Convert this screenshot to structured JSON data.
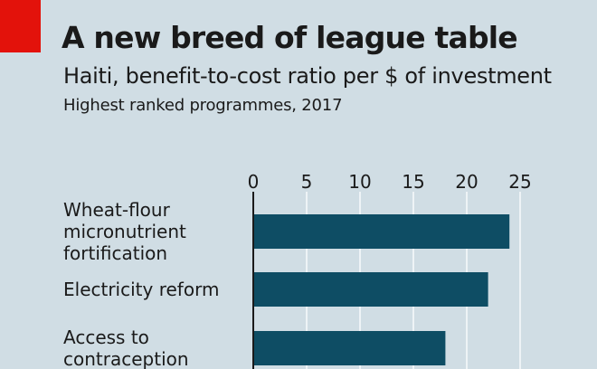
{
  "header": {
    "title": "A new breed of league table",
    "subtitle": "Haiti, benefit-to-cost ratio per $ of investment",
    "subsubtitle": "Highest ranked programmes, 2017"
  },
  "colors": {
    "background": "#d0dde4",
    "bar": "#0e4d64",
    "accent": "#e3120b",
    "gridline": "#ffffff"
  },
  "chart_data": {
    "type": "bar",
    "orientation": "horizontal",
    "title": "A new breed of league table",
    "subtitle": "Haiti, benefit-to-cost ratio per $ of investment",
    "xlabel": "",
    "ylabel": "",
    "xlim": [
      0,
      25
    ],
    "ticks": [
      0,
      5,
      10,
      15,
      20,
      25
    ],
    "tick_labels": [
      "0",
      "5",
      "10",
      "15",
      "20",
      "25"
    ],
    "grid": true,
    "categories": [
      [
        "Wheat-flour",
        "micronutrient",
        "fortification"
      ],
      [
        "Electricity reform"
      ],
      [
        "Access to",
        "contraception"
      ]
    ],
    "values": [
      24,
      22,
      18
    ]
  }
}
